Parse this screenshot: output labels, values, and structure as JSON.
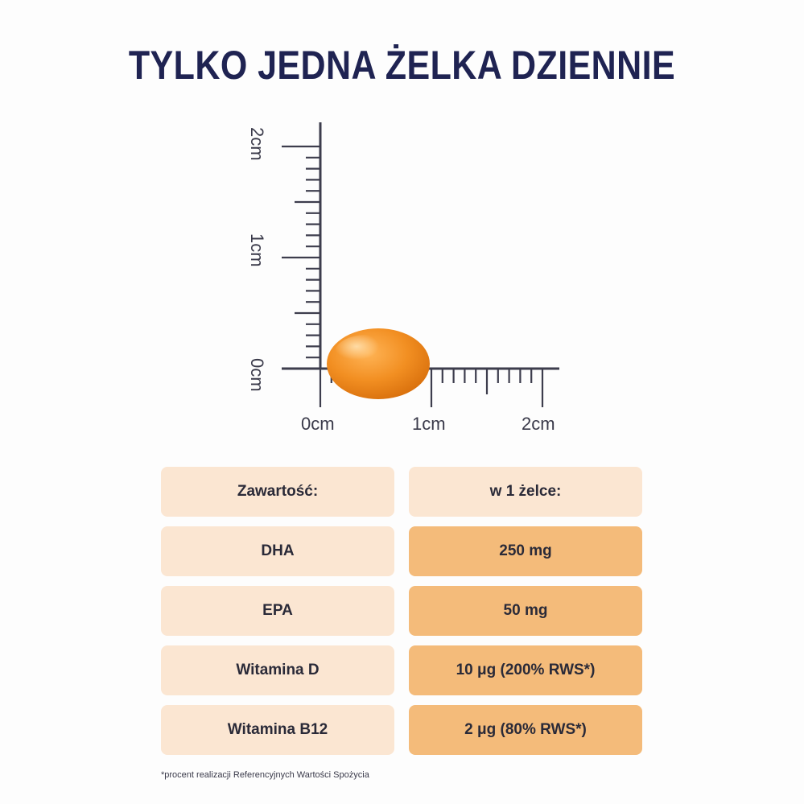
{
  "title": "TYLKO JEDNA ŻELKA DZIENNIE",
  "ruler": {
    "vertical_labels": [
      "2cm",
      "1cm",
      "0cm"
    ],
    "horizontal_labels": [
      "0cm",
      "1cm",
      "2cm"
    ],
    "gummy_color": "#ee8b1c"
  },
  "table": {
    "header": {
      "label": "Zawartość:",
      "value": "w 1 żelce:"
    },
    "rows": [
      {
        "label": "DHA",
        "value": "250 mg"
      },
      {
        "label": "EPA",
        "value": "50 mg"
      },
      {
        "label": "Witamina D",
        "value": "10 μg (200% RWS*)"
      },
      {
        "label": "Witamina B12",
        "value": "2 μg (80% RWS*)"
      }
    ]
  },
  "footnote": "*procent realizacji Referencyjnych Wartości Spożycia",
  "colors": {
    "title": "#1f2352",
    "label_cell": "#fbe6d2",
    "value_cell": "#f4bb7a"
  }
}
